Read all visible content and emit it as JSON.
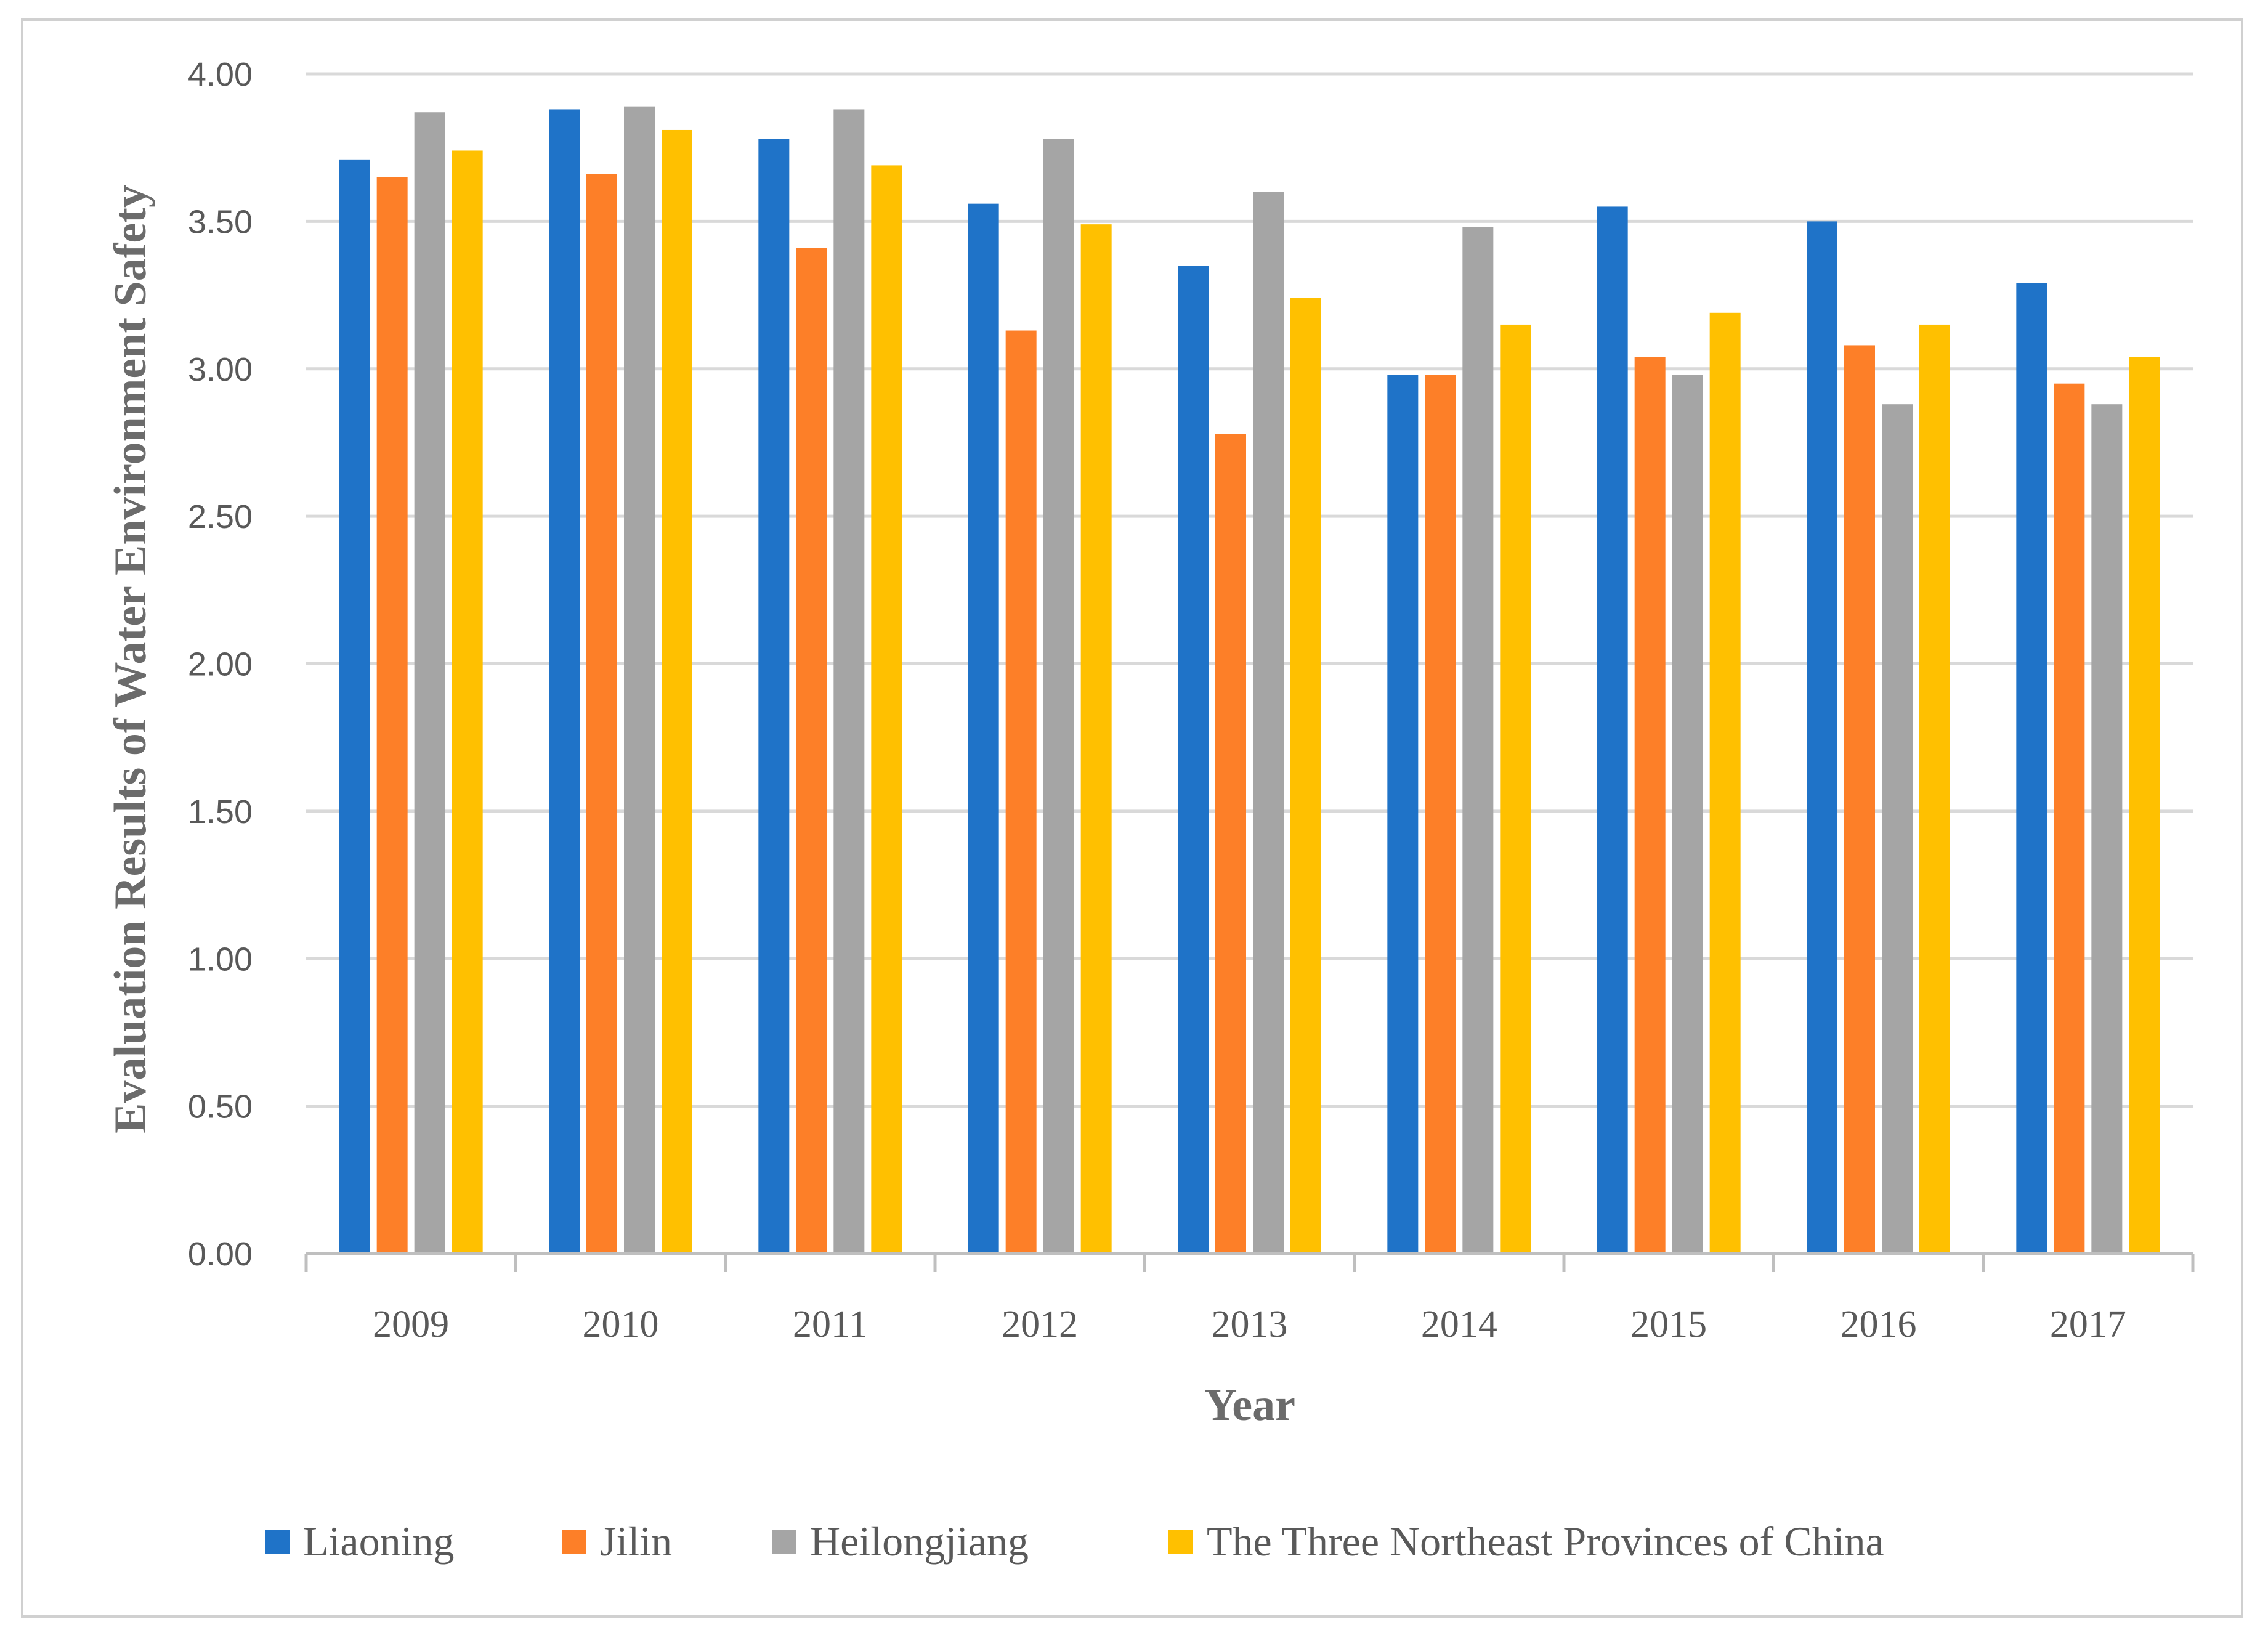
{
  "chart_data": {
    "type": "bar",
    "title": "",
    "xlabel": "Year",
    "ylabel": "Evaluation Results of Water Environment Safety",
    "ylim": [
      0,
      4
    ],
    "yticks": [
      "0.00",
      "0.50",
      "1.00",
      "1.50",
      "2.00",
      "2.50",
      "3.00",
      "3.50",
      "4.00"
    ],
    "ytick_values": [
      0,
      0.5,
      1,
      1.5,
      2,
      2.5,
      3,
      3.5,
      4
    ],
    "categories": [
      "2009",
      "2010",
      "2011",
      "2012",
      "2013",
      "2014",
      "2015",
      "2016",
      "2017"
    ],
    "grid": true,
    "legend_position": "bottom",
    "series": [
      {
        "name": "Liaoning",
        "color": "#1f73c8",
        "values": [
          3.71,
          3.88,
          3.78,
          3.56,
          3.35,
          2.98,
          3.55,
          3.5,
          3.29
        ]
      },
      {
        "name": "Jilin",
        "color": "#fd7f28",
        "values": [
          3.65,
          3.66,
          3.41,
          3.13,
          2.78,
          2.98,
          3.04,
          3.08,
          2.95
        ]
      },
      {
        "name": "Heilongjiang",
        "color": "#a5a5a5",
        "values": [
          3.87,
          3.89,
          3.88,
          3.78,
          3.6,
          3.48,
          2.98,
          2.88,
          2.88
        ]
      },
      {
        "name": "The Three Northeast Provinces of China",
        "color": "#ffc000",
        "values": [
          3.74,
          3.81,
          3.69,
          3.49,
          3.24,
          3.15,
          3.19,
          3.15,
          3.04
        ]
      }
    ]
  }
}
